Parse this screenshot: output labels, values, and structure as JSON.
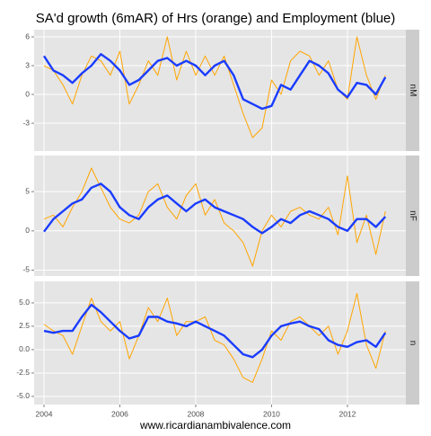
{
  "title": "SA'd growth (6mAR) of Hrs (orange) and Employment (blue)",
  "caption": "www.ricardianambivalence.com",
  "chart_data": [
    {
      "type": "line",
      "facet": "nM",
      "x": [
        2004,
        2004.25,
        2004.5,
        2004.75,
        2005,
        2005.25,
        2005.5,
        2005.75,
        2006,
        2006.25,
        2006.5,
        2006.75,
        2007,
        2007.25,
        2007.5,
        2007.75,
        2008,
        2008.25,
        2008.5,
        2008.75,
        2009,
        2009.25,
        2009.5,
        2009.75,
        2010,
        2010.25,
        2010.5,
        2010.75,
        2011,
        2011.25,
        2011.5,
        2011.75,
        2012,
        2012.25,
        2012.5,
        2012.75,
        2013
      ],
      "xlim": [
        2003.74,
        2013.54
      ],
      "xticks": [
        2004,
        2006,
        2008,
        2010,
        2012
      ],
      "ylim": [
        -5.9,
        6.75
      ],
      "yticks": [
        -3,
        0,
        3,
        6
      ],
      "grid": true,
      "series": [
        {
          "color": "#ffa500",
          "values": [
            3.0,
            2.5,
            1.0,
            -1.0,
            2.0,
            4.0,
            3.5,
            2.0,
            4.5,
            -1.0,
            1.0,
            3.5,
            2.0,
            6.0,
            1.5,
            4.5,
            2.0,
            4.0,
            2.0,
            4.0,
            1.0,
            -2.0,
            -4.5,
            -3.5,
            1.5,
            0.0,
            3.5,
            4.5,
            4.0,
            2.0,
            3.5,
            0.5,
            -0.5,
            6.0,
            2.0,
            -0.5,
            2.0
          ]
        },
        {
          "color": "#1a3cff",
          "values": [
            4.0,
            2.5,
            2.0,
            1.2,
            2.2,
            3.0,
            4.2,
            3.5,
            2.5,
            1.0,
            1.5,
            2.5,
            3.5,
            3.8,
            3.0,
            3.5,
            3.0,
            2.0,
            3.0,
            3.5,
            2.0,
            -0.5,
            -1.0,
            -1.5,
            -1.2,
            1.0,
            0.5,
            2.0,
            3.5,
            3.0,
            2.2,
            0.5,
            -0.3,
            1.2,
            1.0,
            0.0,
            1.8
          ]
        }
      ]
    },
    {
      "type": "line",
      "facet": "nF",
      "x": [
        2004,
        2004.25,
        2004.5,
        2004.75,
        2005,
        2005.25,
        2005.5,
        2005.75,
        2006,
        2006.25,
        2006.5,
        2006.75,
        2007,
        2007.25,
        2007.5,
        2007.75,
        2008,
        2008.25,
        2008.5,
        2008.75,
        2009,
        2009.25,
        2009.5,
        2009.75,
        2010,
        2010.25,
        2010.5,
        2010.75,
        2011,
        2011.25,
        2011.5,
        2011.75,
        2012,
        2012.25,
        2012.5,
        2012.75,
        2013
      ],
      "xlim": [
        2003.74,
        2013.54
      ],
      "xticks": [
        2004,
        2006,
        2008,
        2010,
        2012
      ],
      "ylim": [
        -5.75,
        9.6
      ],
      "yticks": [
        -5,
        0,
        5
      ],
      "grid": true,
      "series": [
        {
          "color": "#ffa500",
          "values": [
            1.5,
            2.0,
            0.5,
            3.0,
            5.0,
            8.0,
            5.5,
            3.0,
            1.5,
            1.0,
            2.0,
            5.0,
            6.0,
            3.0,
            1.5,
            4.5,
            6.0,
            2.0,
            4.0,
            1.0,
            0.0,
            -1.5,
            -4.5,
            0.0,
            2.0,
            0.5,
            2.5,
            3.0,
            2.0,
            1.5,
            3.0,
            -0.5,
            7.0,
            -1.5,
            2.0,
            -3.0,
            2.5
          ]
        },
        {
          "color": "#1a3cff",
          "values": [
            -0.1,
            1.5,
            2.5,
            3.5,
            4.0,
            5.5,
            6.0,
            5.0,
            3.0,
            2.0,
            1.5,
            3.0,
            4.0,
            4.5,
            3.5,
            2.5,
            3.5,
            4.0,
            3.0,
            2.5,
            2.0,
            1.5,
            0.5,
            -0.3,
            0.5,
            1.5,
            1.0,
            2.0,
            2.5,
            2.0,
            1.5,
            0.5,
            0.0,
            1.5,
            1.5,
            0.5,
            1.8
          ]
        }
      ]
    },
    {
      "type": "line",
      "facet": "n",
      "x": [
        2004,
        2004.25,
        2004.5,
        2004.75,
        2005,
        2005.25,
        2005.5,
        2005.75,
        2006,
        2006.25,
        2006.5,
        2006.75,
        2007,
        2007.25,
        2007.5,
        2007.75,
        2008,
        2008.25,
        2008.5,
        2008.75,
        2009,
        2009.25,
        2009.5,
        2009.75,
        2010,
        2010.25,
        2010.5,
        2010.75,
        2011,
        2011.25,
        2011.5,
        2011.75,
        2012,
        2012.25,
        2012.5,
        2012.75,
        2013
      ],
      "xlim": [
        2003.74,
        2013.54
      ],
      "xticks": [
        2004,
        2006,
        2008,
        2010,
        2012
      ],
      "ylim": [
        -5.87,
        7.3
      ],
      "yticks": [
        {
          "value": -5,
          "label": "-5.0"
        },
        {
          "value": -2.5,
          "label": "-2.5"
        },
        {
          "value": 0,
          "label": "0.0"
        },
        {
          "value": 2.5,
          "label": "2.5"
        },
        {
          "value": 5,
          "label": "5.0"
        }
      ],
      "grid": true,
      "series": [
        {
          "color": "#ffa500",
          "values": [
            2.7,
            2.0,
            1.5,
            -0.5,
            2.5,
            5.5,
            3.0,
            2.0,
            3.0,
            -1.0,
            1.5,
            4.5,
            3.0,
            5.5,
            1.5,
            3.0,
            3.0,
            3.5,
            1.0,
            0.5,
            -1.0,
            -3.0,
            -3.5,
            -1.0,
            2.0,
            1.0,
            3.0,
            3.5,
            2.5,
            1.5,
            2.5,
            -0.5,
            2.0,
            6.0,
            0.5,
            -2.0,
            2.0
          ]
        },
        {
          "color": "#1a3cff",
          "values": [
            2.0,
            1.8,
            2.0,
            2.0,
            3.5,
            4.8,
            4.0,
            3.0,
            2.0,
            1.2,
            1.5,
            3.5,
            3.5,
            3.0,
            2.8,
            2.5,
            3.0,
            2.5,
            2.0,
            1.5,
            0.5,
            -0.5,
            -0.8,
            0.0,
            1.5,
            2.5,
            2.8,
            3.0,
            2.5,
            2.2,
            1.0,
            0.5,
            0.3,
            0.8,
            1.0,
            0.3,
            1.8
          ]
        }
      ]
    }
  ]
}
